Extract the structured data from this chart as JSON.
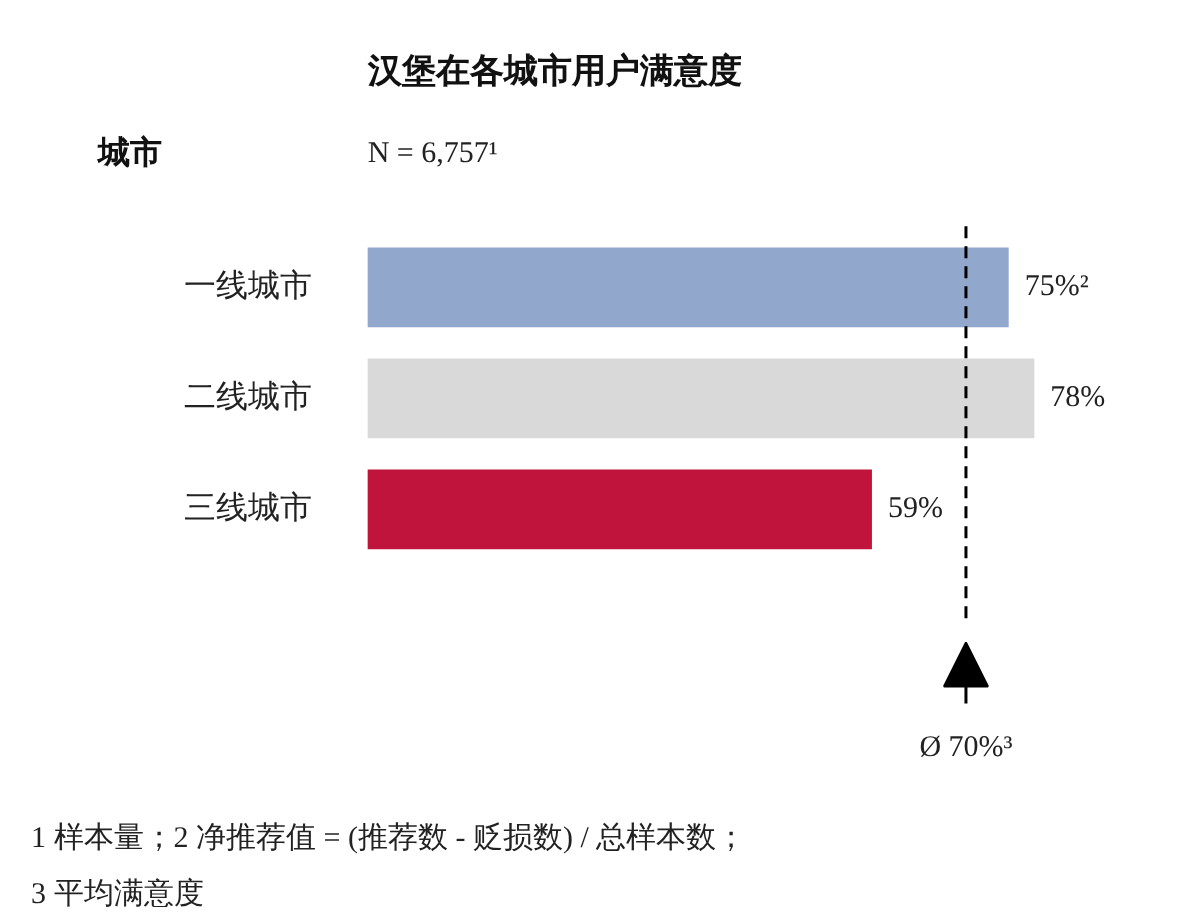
{
  "chart_data": {
    "type": "bar",
    "orientation": "horizontal",
    "title": "汉堡在各城市用户满意度",
    "subtitle": "N = 6,757¹",
    "ylabel": "城市",
    "categories": [
      "一线城市",
      "二线城市",
      "三线城市"
    ],
    "values": [
      75,
      78,
      59
    ],
    "colors": [
      "#91a7cc",
      "#d9d9d9",
      "#c0143c"
    ],
    "value_labels": [
      "75%²",
      "78%",
      "59%"
    ],
    "ref_lines": [
      {
        "axis": "x",
        "value": 70,
        "label": "Ø 70%³",
        "line_style": "dashed",
        "color": "#000000"
      }
    ],
    "annotations": [
      "1 样本量；2 净推荐值 = (推荐数 - 贬损数) / 总样本数；",
      "3 平均满意度"
    ]
  }
}
